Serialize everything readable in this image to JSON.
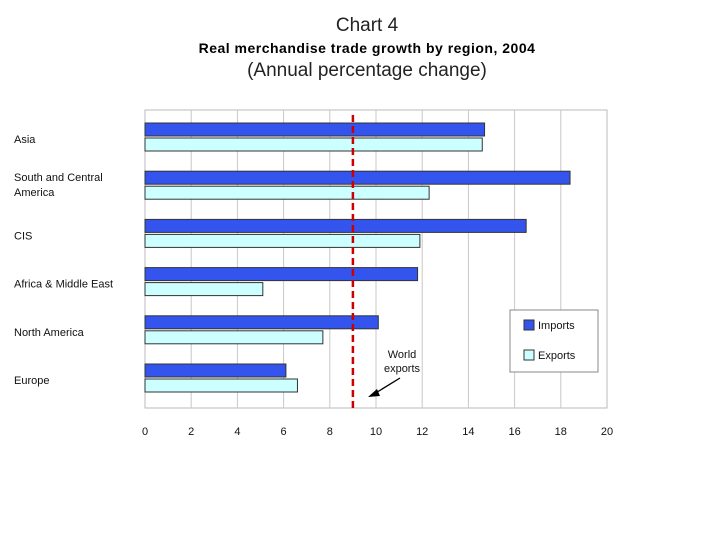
{
  "header": {
    "chart_number": "Chart 4",
    "title": "Real merchandise trade growth by region, 2004",
    "subtitle": "(Annual percentage change)"
  },
  "chart_data": {
    "type": "bar",
    "orientation": "horizontal",
    "categories": [
      "Asia",
      "South and Central America",
      "CIS",
      "Africa & Middle East",
      "North America",
      "Europe"
    ],
    "series": [
      {
        "name": "Imports",
        "values": [
          14.7,
          18.4,
          16.5,
          11.8,
          10.1,
          6.1
        ],
        "color": "#3355ee"
      },
      {
        "name": "Exports",
        "values": [
          14.6,
          12.3,
          11.9,
          5.1,
          7.7,
          6.6
        ],
        "color": "#ccffff"
      }
    ],
    "xlim": [
      0,
      20
    ],
    "xticks": [
      "0",
      "2",
      "4",
      "6",
      "8",
      "10",
      "12",
      "14",
      "16",
      "18",
      "20"
    ],
    "grid": true,
    "legend_position": "bottom-right",
    "reference_line": {
      "value": 9,
      "label_lines": [
        "World",
        "exports"
      ],
      "color": "#cc0000",
      "style": "dashed"
    }
  }
}
